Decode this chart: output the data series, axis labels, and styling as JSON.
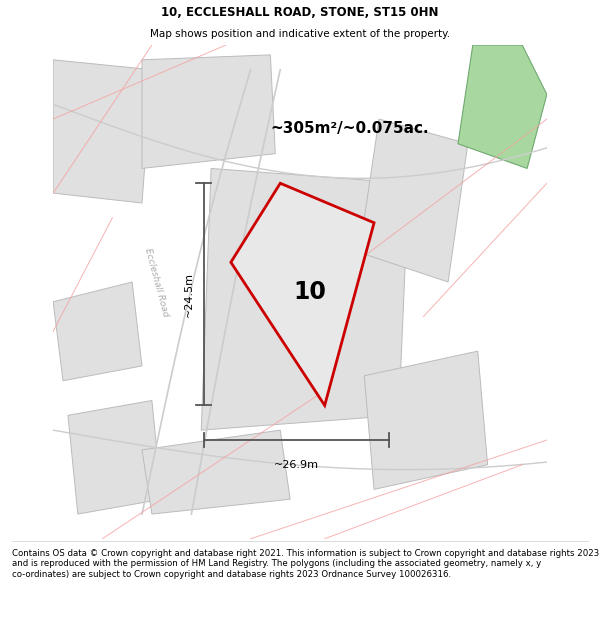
{
  "title": "10, ECCLESHALL ROAD, STONE, ST15 0HN",
  "subtitle": "Map shows position and indicative extent of the property.",
  "footer": "Contains OS data © Crown copyright and database right 2021. This information is subject to Crown copyright and database rights 2023 and is reproduced with the permission of HM Land Registry. The polygons (including the associated geometry, namely x, y co-ordinates) are subject to Crown copyright and database rights 2023 Ordnance Survey 100026316.",
  "background_color": "#ffffff",
  "property_fill": "#e8e8e8",
  "property_outline": "#cc0000",
  "area_label": "~305m²/~0.075ac.",
  "number_label": "10",
  "dim_width": "~26.9m",
  "dim_height": "~24.5m",
  "neighbor_fill": "#e0e0e0",
  "neighbor_stroke": "#bbbbbb",
  "green_fill": "#a8d8a0",
  "green_stroke": "#70a870",
  "pink_line": "#f5a0a0",
  "road_line": "#cccccc",
  "road_label": "Eccleshall Road",
  "road_label_color": "#aaaaaa",
  "dim_color": "#333333",
  "dim_line_color": "#555555"
}
